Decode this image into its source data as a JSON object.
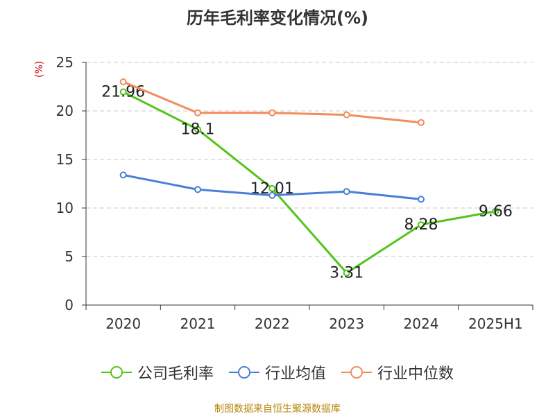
{
  "title": "历年毛利率变化情况(%)",
  "unit_label": "(%)",
  "source_note": "制图数据来自恒生聚源数据库",
  "colors": {
    "company": "#52c41a",
    "industry_avg": "#4a7fd8",
    "industry_median": "#f28c5a",
    "grid": "#c8c8c8",
    "axis": "#333333",
    "unit": "#cc0000",
    "footer": "#b8860b"
  },
  "chart_data": {
    "type": "line",
    "title": "历年毛利率变化情况(%)",
    "ylabel": "(%)",
    "xlabel": "",
    "categories": [
      "2020",
      "2021",
      "2022",
      "2023",
      "2024",
      "2025H1"
    ],
    "ylim": [
      0,
      25
    ],
    "yticks": [
      0,
      5,
      10,
      15,
      20,
      25
    ],
    "grid": true,
    "legend_position": "bottom",
    "series": [
      {
        "name": "公司毛利率",
        "color": "#52c41a",
        "values": [
          21.96,
          18.1,
          12.01,
          3.31,
          8.28,
          9.66
        ],
        "labels": [
          "21.96",
          "18.1",
          "12.01",
          "3.31",
          "8.28",
          "9.66"
        ]
      },
      {
        "name": "行业均值",
        "color": "#4a7fd8",
        "values": [
          13.4,
          11.9,
          11.3,
          11.7,
          10.9,
          null
        ]
      },
      {
        "name": "行业中位数",
        "color": "#f28c5a",
        "values": [
          23.0,
          19.8,
          19.8,
          19.6,
          18.8,
          null
        ]
      }
    ]
  }
}
